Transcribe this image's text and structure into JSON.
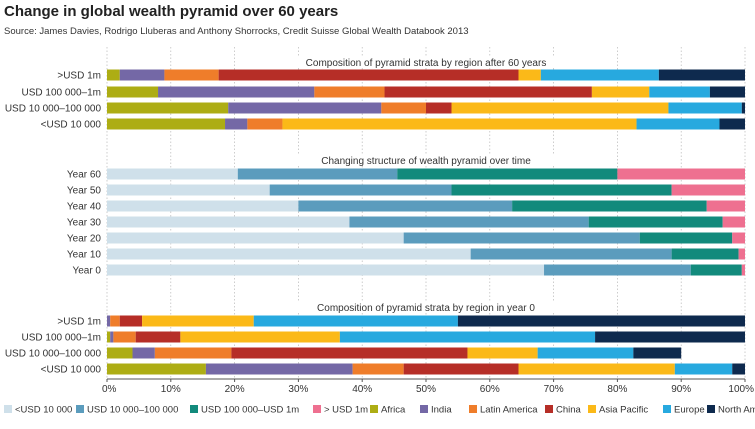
{
  "title": "Change in global wealth pyramid over 60 years",
  "subtitle": "Source: James Davies, Rodrigo Lluberas and Anthony Shorrocks, Credit Suisse Global Wealth Databook 2013",
  "chart_data": {
    "type": "bar",
    "orientation": "horizontal",
    "stacked": true,
    "xlim": [
      0,
      100
    ],
    "x_ticks": [
      "0%",
      "10%",
      "20%",
      "30%",
      "40%",
      "50%",
      "60%",
      "70%",
      "80%",
      "90%",
      "100%"
    ],
    "grid": true,
    "legend_position": "bottom",
    "legend": [
      {
        "label": "<USD 10 000",
        "color": "#cfe0ea"
      },
      {
        "label": "USD 10 000–100 000",
        "color": "#5b9cbd"
      },
      {
        "label": "USD 100 000–USD 1m",
        "color": "#128a7c"
      },
      {
        "label": "> USD 1m",
        "color": "#ee7090"
      },
      {
        "label": "Africa",
        "color": "#adad14"
      },
      {
        "label": "India",
        "color": "#7468a6"
      },
      {
        "label": "Latin America",
        "color": "#ef7d2a"
      },
      {
        "label": "China",
        "color": "#b62e27"
      },
      {
        "label": "Asia Pacific",
        "color": "#fbb918"
      },
      {
        "label": "Europe",
        "color": "#27a9df"
      },
      {
        "label": "North America",
        "color": "#0e2a4e"
      }
    ],
    "panels": [
      {
        "title": "Composition of pyramid strata by region after 60 years",
        "series": [
          "Africa",
          "India",
          "Latin America",
          "China",
          "Asia Pacific",
          "Europe",
          "North America"
        ],
        "colors": [
          "#adad14",
          "#7468a6",
          "#ef7d2a",
          "#b62e27",
          "#fbb918",
          "#27a9df",
          "#0e2a4e"
        ],
        "categories": [
          ">USD 1m",
          "USD 100 000–1m",
          "USD 10 000–100 000",
          "<USD 10 000"
        ],
        "values": [
          [
            2,
            7,
            8.5,
            47,
            3.5,
            18.5,
            13.5
          ],
          [
            8,
            24.5,
            11,
            32.5,
            9,
            9.5,
            5.5
          ],
          [
            19,
            24,
            7,
            4,
            34,
            11.5,
            0.5
          ],
          [
            18.5,
            3.5,
            5.5,
            0,
            55.5,
            13,
            4
          ]
        ]
      },
      {
        "title": "Changing structure of wealth pyramid over time",
        "series": [
          "<USD 10 000",
          "USD 10 000–100 000",
          "USD 100 000–USD 1m",
          "> USD 1m"
        ],
        "colors": [
          "#cfe0ea",
          "#5b9cbd",
          "#128a7c",
          "#ee7090"
        ],
        "categories": [
          "Year 60",
          "Year 50",
          "Year 40",
          "Year 30",
          "Year 20",
          "Year 10",
          "Year 0"
        ],
        "values": [
          [
            20.5,
            25,
            34.5,
            20
          ],
          [
            25.5,
            28.5,
            34.5,
            11.5
          ],
          [
            30,
            33.5,
            30.5,
            6
          ],
          [
            38,
            37.5,
            21,
            3.5
          ],
          [
            46.5,
            37,
            14.5,
            2
          ],
          [
            57,
            31.5,
            10.5,
            1
          ],
          [
            68.5,
            23,
            8,
            0.5
          ]
        ]
      },
      {
        "title": "Composition of pyramid strata by region in year 0",
        "series": [
          "Africa",
          "India",
          "Latin America",
          "China",
          "Asia Pacific",
          "Europe",
          "North America"
        ],
        "colors": [
          "#adad14",
          "#7468a6",
          "#ef7d2a",
          "#b62e27",
          "#fbb918",
          "#27a9df",
          "#0e2a4e"
        ],
        "categories": [
          ">USD 1m",
          "USD 100 000–1m",
          "USD 10 000–100 000",
          "<USD 10 000"
        ],
        "values": [
          [
            0,
            0.5,
            1.5,
            3.5,
            17.5,
            32,
            45
          ],
          [
            0.5,
            0.5,
            3.5,
            7,
            25,
            40,
            23.5
          ],
          [
            4,
            3.5,
            12,
            37,
            11,
            15,
            7.5
          ],
          [
            15.5,
            23,
            8,
            18,
            24.5,
            9,
            2
          ]
        ]
      }
    ]
  }
}
